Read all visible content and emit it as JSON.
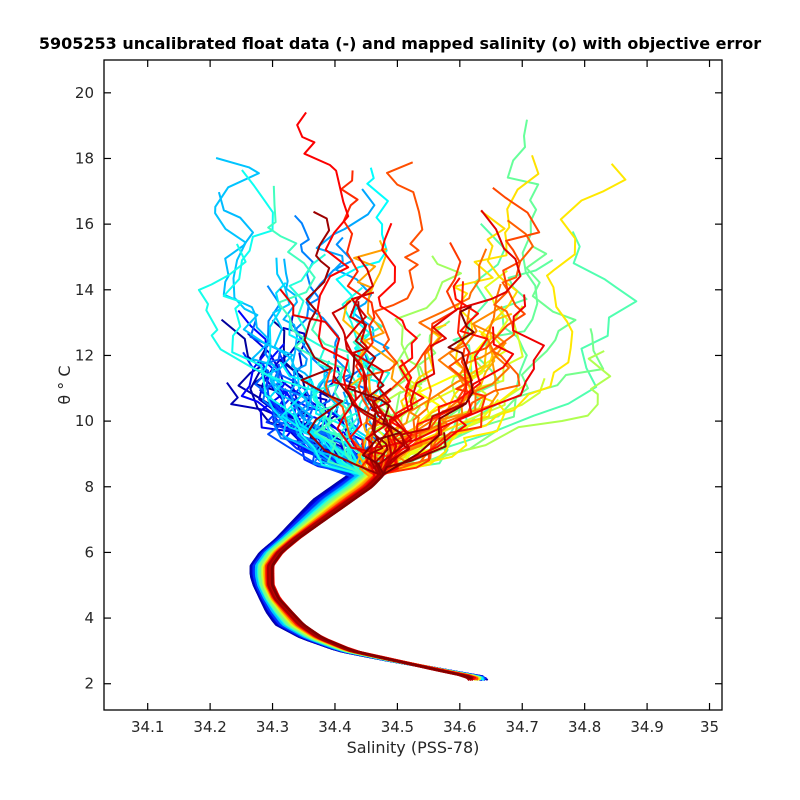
{
  "chart_data": {
    "type": "line",
    "title": "5905253 uncalibrated float data (-) and mapped salinity (o) with objective error",
    "xlabel": "Salinity (PSS-78)",
    "ylabel": "θ ° C",
    "xlim": [
      34.03,
      35.02
    ],
    "ylim": [
      1.2,
      21.0
    ],
    "xticks": [
      "34.1",
      "34.2",
      "34.3",
      "34.4",
      "34.5",
      "34.6",
      "34.7",
      "34.8",
      "34.9",
      "35"
    ],
    "yticks": [
      "2",
      "4",
      "6",
      "8",
      "10",
      "12",
      "14",
      "16",
      "18",
      "20"
    ],
    "grid": false,
    "legend": "none",
    "colormap": "jet",
    "colormap_stops": [
      "#00008f",
      "#0000ff",
      "#0080ff",
      "#00ffff",
      "#80ff80",
      "#ffff00",
      "#ff8000",
      "#ff0000",
      "#800000"
    ],
    "series_description": "Theta-salinity profiles colored by profile number (blue = early, dark red = late)",
    "deep_curve": {
      "theta": [
        2.2,
        2.4,
        2.7,
        3.0,
        3.4,
        3.8,
        4.2,
        4.6,
        5.0,
        5.3,
        5.6,
        6.0,
        6.4,
        6.8,
        7.2,
        7.6,
        8.0,
        8.4
      ],
      "salinity_early": [
        34.64,
        34.58,
        34.49,
        34.41,
        34.35,
        34.31,
        34.295,
        34.285,
        34.275,
        34.27,
        34.27,
        34.285,
        34.31,
        34.33,
        34.35,
        34.37,
        34.4,
        34.43
      ],
      "salinity_late": [
        34.62,
        34.57,
        34.5,
        34.43,
        34.38,
        34.35,
        34.33,
        34.31,
        34.3,
        34.3,
        34.3,
        34.315,
        34.34,
        34.37,
        34.4,
        34.43,
        34.46,
        34.48
      ]
    },
    "surface_spread": {
      "early_salinity_range": [
        34.16,
        34.5
      ],
      "late_salinity_range": [
        34.3,
        34.92
      ],
      "theta_max": 19.9
    }
  }
}
